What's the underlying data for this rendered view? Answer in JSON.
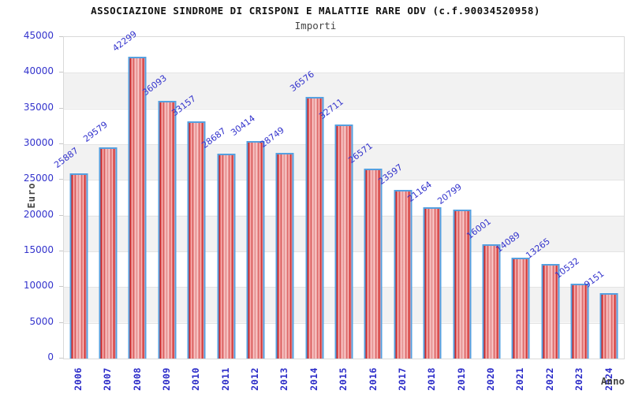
{
  "chart_data": {
    "type": "bar",
    "title": "ASSOCIAZIONE SINDROME DI CRISPONI E MALATTIE RARE ODV (c.f.90034520958)",
    "subtitle": "Importi",
    "xlabel": "Anno",
    "ylabel": "Euro",
    "categories": [
      "2006",
      "2007",
      "2008",
      "2009",
      "2010",
      "2011",
      "2012",
      "2013",
      "2014",
      "2015",
      "2016",
      "2017",
      "2018",
      "2019",
      "2020",
      "2021",
      "2022",
      "2023",
      "2024"
    ],
    "values": [
      25887,
      29579,
      42299,
      36093,
      33157,
      28687,
      30414,
      28749,
      36576,
      32711,
      26571,
      23597,
      21164,
      20799,
      16001,
      14089,
      13265,
      10532,
      9151
    ],
    "ylim": [
      0,
      45000
    ],
    "ytick_step": 5000,
    "yticks": [
      0,
      5000,
      10000,
      15000,
      20000,
      25000,
      30000,
      35000,
      40000,
      45000
    ],
    "grid": "horizontal-bands-alternating",
    "legend": null,
    "colors": {
      "tick_label_blue": "#3333cc",
      "value_label_blue": "#3333cc",
      "bar_dark_red": "#cc1f1f",
      "bar_light_red": "#f59d9d",
      "bar_border_blue": "#55a0e0",
      "band_gray": "#f2f2f2",
      "band_white": "#ffffff",
      "plot_border": "#d9d9d9",
      "axis_title_gray": "#444444",
      "title_black": "#111111"
    }
  }
}
